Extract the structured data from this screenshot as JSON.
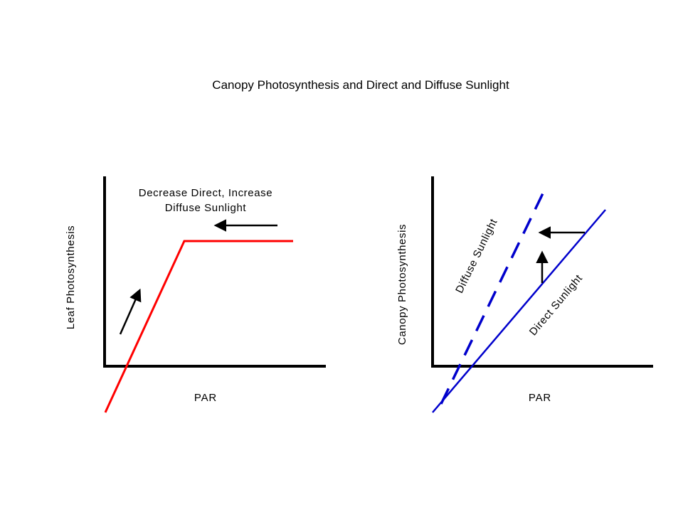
{
  "title": "Canopy Photosynthesis and Direct and Diffuse Sunlight",
  "colors": {
    "leaf_curve": "#ff0000",
    "canopy_lines": "#0000cc",
    "axes": "#000000",
    "arrows": "#000000",
    "background": "#ffffff"
  },
  "left_panel": {
    "y_axis_label": "Leaf Photosynthesis",
    "x_axis_label": "PAR",
    "annotation_line1": "Decrease Direct, Increase",
    "annotation_line2": "Diffuse Sunlight"
  },
  "right_panel": {
    "y_axis_label": "Canopy Photosynthesis",
    "x_axis_label": "PAR",
    "diffuse_label": "Diffuse Sunlight",
    "direct_label": "Direct Sunlight"
  }
}
